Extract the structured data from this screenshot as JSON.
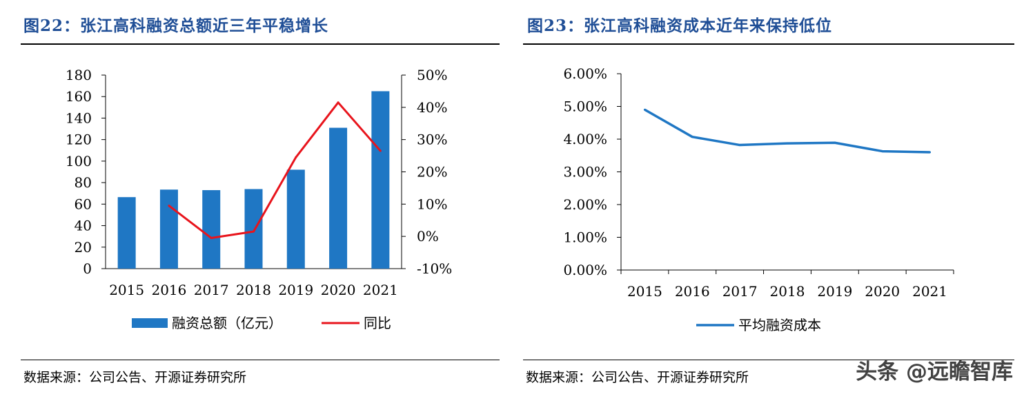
{
  "left_panel": {
    "title": "图22：张江高科融资总额近三年平稳增长",
    "source": "数据来源：公司公告、开源证券研究所"
  },
  "right_panel": {
    "title": "图23：张江高科融资成本近年来保持低位",
    "source": "数据来源：公司公告、开源证券研究所"
  },
  "watermark": "头条 @远瞻智库",
  "colors": {
    "bar": "#1f77c4",
    "yoy_line": "#e8141c",
    "cost_line": "#1f77c4",
    "title": "#1f4e96"
  },
  "chart_data": [
    {
      "type": "bar+line",
      "title": "图22：张江高科融资总额近三年平稳增长",
      "categories": [
        "2015",
        "2016",
        "2017",
        "2018",
        "2019",
        "2020",
        "2021"
      ],
      "series": [
        {
          "name": "融资总额（亿元）",
          "type": "bar",
          "axis": "left",
          "values": [
            66.5,
            73.5,
            73,
            74,
            92,
            131,
            165
          ]
        },
        {
          "name": "同比",
          "type": "line",
          "axis": "right",
          "values": [
            null,
            9.5,
            -0.5,
            1.5,
            24.5,
            41.5,
            26.5
          ]
        }
      ],
      "y_left": {
        "min": 0,
        "max": 180,
        "ticks": [
          "0",
          "20",
          "40",
          "60",
          "80",
          "100",
          "120",
          "140",
          "160",
          "180"
        ]
      },
      "y_right": {
        "min": -10,
        "max": 50,
        "ticks": [
          "-10%",
          "0%",
          "10%",
          "20%",
          "30%",
          "40%",
          "50%"
        ]
      },
      "legend": [
        "融资总额（亿元）",
        "同比"
      ],
      "legend_position": "bottom",
      "grid": false
    },
    {
      "type": "line",
      "title": "图23：张江高科融资成本近年来保持低位",
      "categories": [
        "2015",
        "2016",
        "2017",
        "2018",
        "2019",
        "2020",
        "2021"
      ],
      "series": [
        {
          "name": "平均融资成本",
          "values": [
            4.9,
            4.07,
            3.82,
            3.87,
            3.89,
            3.63,
            3.6
          ]
        }
      ],
      "y": {
        "min": 0,
        "max": 6,
        "ticks": [
          "0.00%",
          "1.00%",
          "2.00%",
          "3.00%",
          "4.00%",
          "5.00%",
          "6.00%"
        ]
      },
      "legend": [
        "平均融资成本"
      ],
      "legend_position": "bottom",
      "grid": false
    }
  ]
}
